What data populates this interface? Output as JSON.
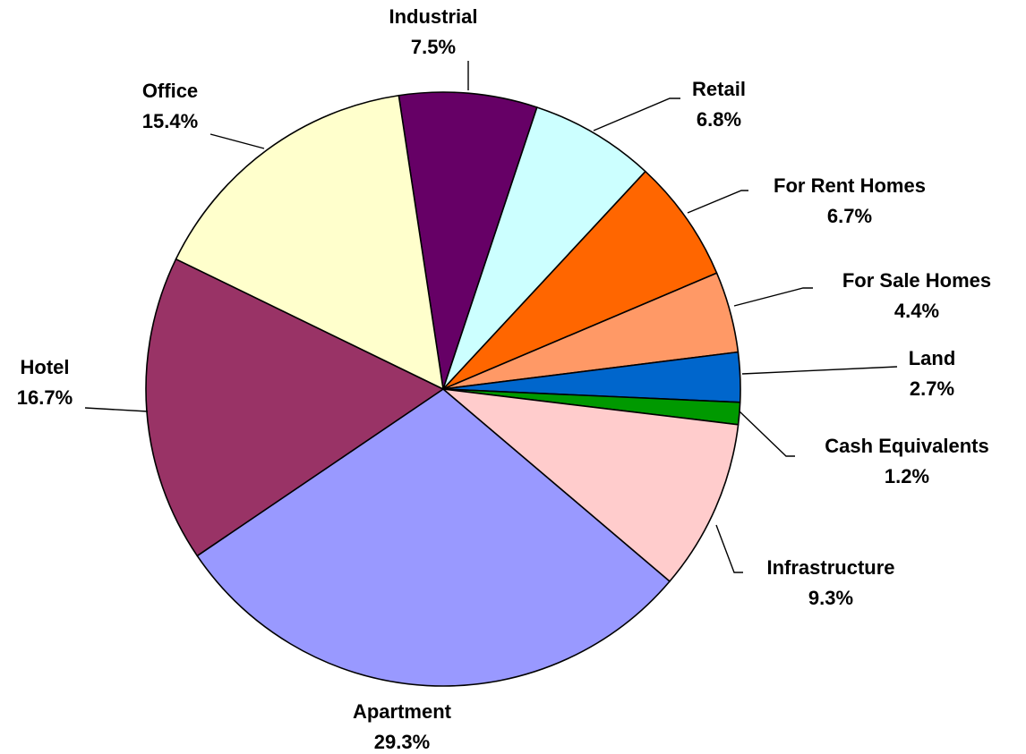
{
  "chart_data": {
    "type": "pie",
    "categories": [
      "Industrial",
      "Retail",
      "For Rent Homes",
      "For Sale Homes",
      "Land",
      "Cash Equivalents",
      "Infrastructure",
      "Apartment",
      "Hotel",
      "Office"
    ],
    "values": [
      7.5,
      6.8,
      6.7,
      4.4,
      2.7,
      1.2,
      9.3,
      29.3,
      16.7,
      15.4
    ],
    "value_labels": [
      "7.5%",
      "6.8%",
      "6.7%",
      "4.4%",
      "2.7%",
      "1.2%",
      "9.3%",
      "29.3%",
      "16.7%",
      "15.4%"
    ],
    "colors": [
      "#660066",
      "#CCFFFF",
      "#FF6600",
      "#FF9966",
      "#0066CC",
      "#009900",
      "#FFCCCC",
      "#9999FF",
      "#993366",
      "#FFFFCC"
    ]
  }
}
